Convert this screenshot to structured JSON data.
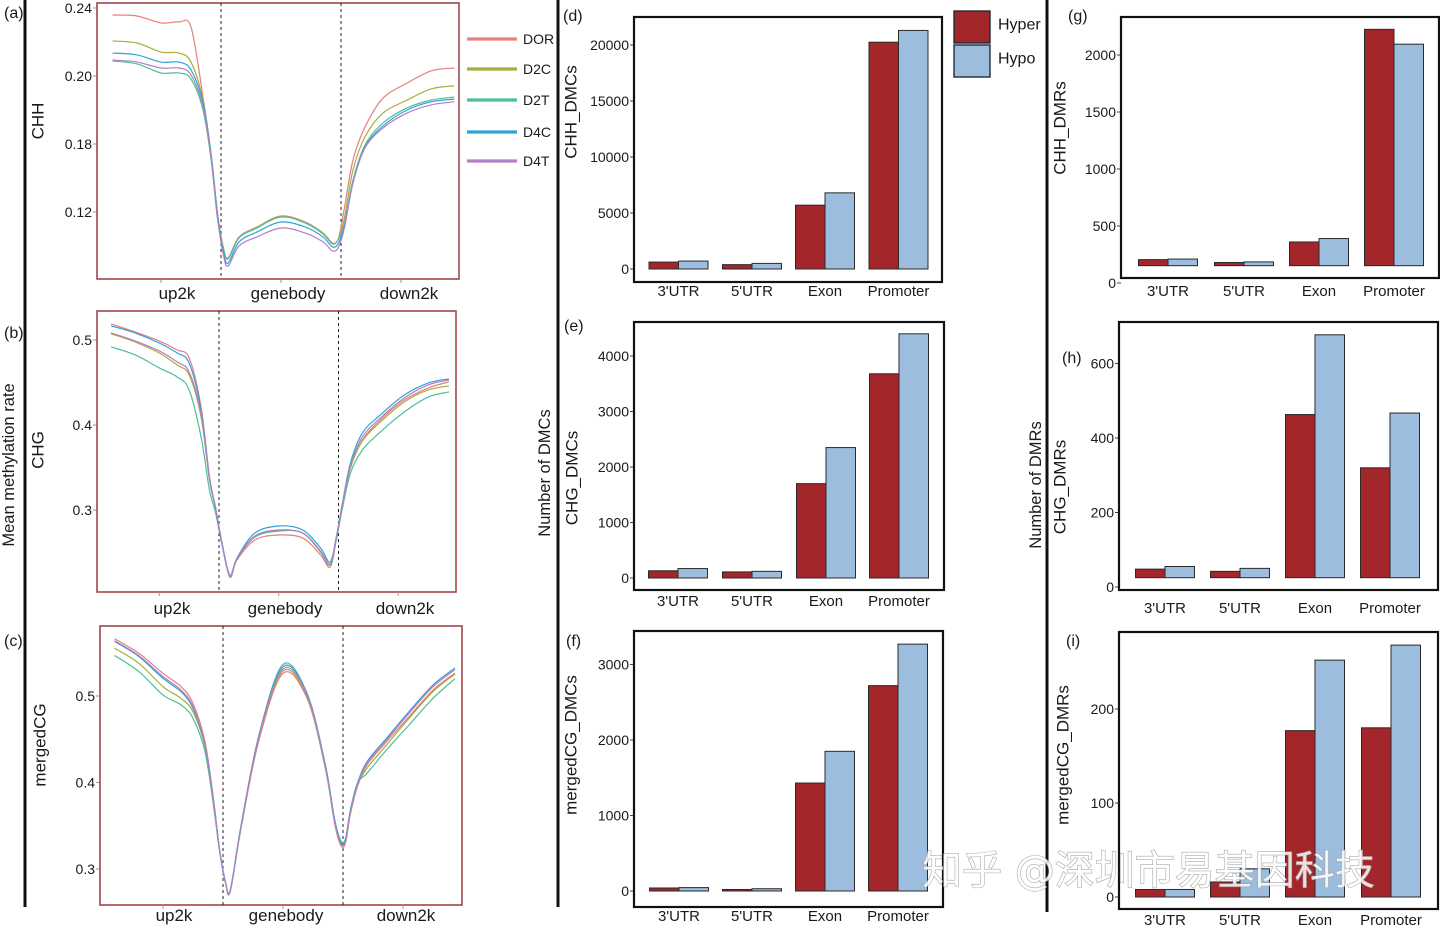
{
  "figure": {
    "y_titles": {
      "left": "Mean methylation rate",
      "middle": "Number of DMCs",
      "right": "Number of DMRs"
    },
    "watermark": "知乎 @深圳市易基因科技"
  },
  "line_legend": [
    {
      "name": "DOR",
      "color": "#e77f7a"
    },
    {
      "name": "D2C",
      "color": "#a8ad3f"
    },
    {
      "name": "D2T",
      "color": "#4dbf97"
    },
    {
      "name": "D4C",
      "color": "#2ea3d8"
    },
    {
      "name": "D4T",
      "color": "#b47fc4"
    }
  ],
  "bar_legend": [
    {
      "name": "Hyper",
      "color": "#a3262a"
    },
    {
      "name": "Hypo",
      "color": "#9dbddf"
    }
  ],
  "colors": {
    "line_frame": "#a0464c",
    "bar_frame": "#111111",
    "separator": "#111111"
  },
  "chart_data": [
    {
      "id": "a",
      "panel_label": "(a)",
      "type": "line",
      "ylabel": "CHH",
      "xtick_labels": [
        "up2k",
        "genebody",
        "down2k"
      ],
      "xtick_values": [
        50,
        150,
        250
      ],
      "region_boundaries": [
        100,
        200
      ],
      "yticks": [
        0.24,
        0.2,
        0.18,
        0.12
      ],
      "ytick_labels": [
        "0.24",
        "0.20",
        "0.18",
        "0.12"
      ],
      "grid": false,
      "legend": "right",
      "x": [
        10,
        30,
        50,
        65,
        75,
        85,
        92,
        97,
        102,
        106,
        115,
        130,
        150,
        170,
        185,
        193,
        198,
        203,
        210,
        220,
        235,
        255,
        275,
        294
      ],
      "series": [
        {
          "name": "DOR",
          "values": [
            0.2359,
            0.2353,
            0.2312,
            0.2318,
            0.2288,
            0.1938,
            0.1685,
            0.1191,
            0.0883,
            0.0795,
            0.098,
            0.1068,
            0.1165,
            0.1112,
            0.1015,
            0.0927,
            0.0971,
            0.1244,
            0.1659,
            0.185,
            0.1935,
            0.1979,
            0.203,
            0.2047
          ]
        },
        {
          "name": "D2C",
          "values": [
            0.2206,
            0.2194,
            0.2141,
            0.2135,
            0.2082,
            0.1929,
            0.1685,
            0.1191,
            0.0879,
            0.0791,
            0.0975,
            0.1064,
            0.1161,
            0.1108,
            0.1011,
            0.0922,
            0.0967,
            0.1156,
            0.1571,
            0.1821,
            0.1891,
            0.1929,
            0.1962,
            0.1971
          ]
        },
        {
          "name": "D2T",
          "values": [
            0.2088,
            0.2071,
            0.2018,
            0.2018,
            0.1991,
            0.19,
            0.1641,
            0.1147,
            0.0874,
            0.0786,
            0.0971,
            0.1059,
            0.1156,
            0.1103,
            0.1006,
            0.0918,
            0.0962,
            0.1103,
            0.1482,
            0.1791,
            0.1862,
            0.1906,
            0.1929,
            0.1938
          ]
        },
        {
          "name": "D4C",
          "values": [
            0.2135,
            0.2124,
            0.2082,
            0.2082,
            0.2035,
            0.1921,
            0.1685,
            0.1191,
            0.0847,
            0.075,
            0.0936,
            0.1024,
            0.1112,
            0.1068,
            0.098,
            0.0892,
            0.0927,
            0.1086,
            0.1465,
            0.1774,
            0.1853,
            0.19,
            0.1924,
            0.1932
          ]
        },
        {
          "name": "D4T",
          "values": [
            0.2094,
            0.2082,
            0.2047,
            0.2047,
            0.2006,
            0.1909,
            0.1659,
            0.1156,
            0.0821,
            0.0724,
            0.0901,
            0.098,
            0.1059,
            0.1015,
            0.0936,
            0.0856,
            0.0892,
            0.1068,
            0.1456,
            0.1765,
            0.1847,
            0.1891,
            0.1915,
            0.1924
          ]
        }
      ]
    },
    {
      "id": "b",
      "panel_label": "(b)",
      "type": "line",
      "ylabel": "CHG",
      "xtick_labels": [
        "up2k",
        "genebody",
        "down2k"
      ],
      "xtick_values": [
        50,
        150,
        250
      ],
      "region_boundaries": [
        100,
        200
      ],
      "yticks": [
        0.5,
        0.4,
        0.3
      ],
      "ytick_labels": [
        "0.5",
        "0.4",
        "0.3"
      ],
      "grid": false,
      "x": [
        10,
        30,
        50,
        65,
        75,
        85,
        92,
        97,
        102,
        109,
        115,
        130,
        150,
        170,
        185,
        193,
        198,
        203,
        210,
        220,
        235,
        255,
        275,
        292
      ],
      "series": [
        {
          "name": "DOR",
          "values": [
            0.5188,
            0.5094,
            0.4988,
            0.4882,
            0.4788,
            0.4212,
            0.3388,
            0.3035,
            0.2647,
            0.2212,
            0.2412,
            0.2647,
            0.2706,
            0.2671,
            0.2471,
            0.2329,
            0.2647,
            0.3035,
            0.3506,
            0.3824,
            0.4059,
            0.4294,
            0.4435,
            0.4506
          ]
        },
        {
          "name": "D2C",
          "values": [
            0.5071,
            0.4976,
            0.4847,
            0.4706,
            0.4588,
            0.4094,
            0.3353,
            0.3024,
            0.2647,
            0.2224,
            0.2424,
            0.2682,
            0.2753,
            0.2729,
            0.2506,
            0.2353,
            0.2647,
            0.3035,
            0.3494,
            0.3812,
            0.4035,
            0.4271,
            0.4412,
            0.4459
          ]
        },
        {
          "name": "D2T",
          "values": [
            0.4918,
            0.4824,
            0.4671,
            0.4565,
            0.4412,
            0.3859,
            0.3235,
            0.2976,
            0.2624,
            0.2224,
            0.2424,
            0.2682,
            0.2753,
            0.2729,
            0.2506,
            0.2353,
            0.2635,
            0.3,
            0.3435,
            0.3706,
            0.3918,
            0.4153,
            0.4329,
            0.4388
          ]
        },
        {
          "name": "D4C",
          "values": [
            0.5165,
            0.5082,
            0.4965,
            0.4847,
            0.4729,
            0.4176,
            0.3388,
            0.3035,
            0.2647,
            0.2235,
            0.2435,
            0.2729,
            0.2812,
            0.2765,
            0.2553,
            0.2388,
            0.2671,
            0.3059,
            0.3553,
            0.3906,
            0.4118,
            0.4353,
            0.4494,
            0.4541
          ]
        },
        {
          "name": "D4T",
          "values": [
            0.5082,
            0.4988,
            0.4871,
            0.4741,
            0.4624,
            0.4129,
            0.3376,
            0.3035,
            0.2647,
            0.2224,
            0.2424,
            0.2694,
            0.2765,
            0.2729,
            0.2518,
            0.2365,
            0.2659,
            0.3047,
            0.3518,
            0.3859,
            0.4082,
            0.4318,
            0.4471,
            0.4529
          ]
        }
      ]
    },
    {
      "id": "c",
      "panel_label": "(c)",
      "type": "line",
      "ylabel": "mergedCG",
      "xtick_labels": [
        "up2k",
        "genebody",
        "down2k"
      ],
      "xtick_values": [
        50,
        150,
        250
      ],
      "region_boundaries": [
        100,
        200
      ],
      "yticks": [
        0.5,
        0.4,
        0.3
      ],
      "ytick_labels": [
        "0.5",
        "0.4",
        "0.3"
      ],
      "grid": false,
      "x": [
        10,
        30,
        50,
        65,
        75,
        85,
        92,
        97,
        102,
        106,
        115,
        130,
        150,
        170,
        185,
        193,
        198,
        202,
        206,
        212,
        220,
        235,
        255,
        275,
        293
      ],
      "series": [
        {
          "name": "DOR",
          "values": [
            0.5659,
            0.5493,
            0.5262,
            0.5108,
            0.4915,
            0.4472,
            0.3817,
            0.3239,
            0.2854,
            0.2746,
            0.347,
            0.4491,
            0.5262,
            0.4973,
            0.4183,
            0.3528,
            0.3277,
            0.3297,
            0.3624,
            0.3952,
            0.4202,
            0.4453,
            0.4761,
            0.5069,
            0.5262
          ]
        },
        {
          "name": "D2C",
          "values": [
            0.5551,
            0.5378,
            0.5108,
            0.4973,
            0.4819,
            0.4414,
            0.3798,
            0.3231,
            0.2846,
            0.2746,
            0.3478,
            0.4518,
            0.5289,
            0.4992,
            0.4183,
            0.3547,
            0.3297,
            0.3316,
            0.3632,
            0.3963,
            0.4164,
            0.4414,
            0.4742,
            0.505,
            0.525
          ]
        },
        {
          "name": "D2T",
          "values": [
            0.5466,
            0.5281,
            0.5012,
            0.4896,
            0.4742,
            0.4356,
            0.374,
            0.322,
            0.2846,
            0.2753,
            0.3501,
            0.4549,
            0.5366,
            0.5031,
            0.4222,
            0.3578,
            0.3335,
            0.3347,
            0.3671,
            0.399,
            0.4106,
            0.4356,
            0.4665,
            0.4973,
            0.5197
          ]
        },
        {
          "name": "D4C",
          "values": [
            0.5628,
            0.5455,
            0.5204,
            0.505,
            0.4857,
            0.4434,
            0.3798,
            0.3239,
            0.2854,
            0.2753,
            0.3489,
            0.4549,
            0.5339,
            0.5031,
            0.4222,
            0.3566,
            0.3316,
            0.3335,
            0.3663,
            0.399,
            0.4241,
            0.4491,
            0.4819,
            0.5127,
            0.532
          ]
        },
        {
          "name": "D4T",
          "values": [
            0.5636,
            0.5466,
            0.5224,
            0.5069,
            0.4877,
            0.4441,
            0.3798,
            0.3231,
            0.2846,
            0.2738,
            0.3478,
            0.453,
            0.5312,
            0.5012,
            0.4202,
            0.3547,
            0.3297,
            0.3316,
            0.3644,
            0.3971,
            0.4222,
            0.4472,
            0.48,
            0.5108,
            0.5301
          ]
        }
      ]
    },
    {
      "id": "d",
      "panel_label": "(d)",
      "type": "bar",
      "ylabel": "CHH_DMCs",
      "categories": [
        "3'UTR",
        "5'UTR",
        "Exon",
        "Promoter"
      ],
      "yticks": [
        0,
        5000,
        10000,
        15000,
        20000
      ],
      "ytick_labels": [
        "0",
        "5000",
        "10000",
        "15000",
        "20000"
      ],
      "bar_base": 0,
      "legend": "top-right",
      "series": [
        {
          "name": "Hyper",
          "values": [
            620,
            390,
            5700,
            20250
          ]
        },
        {
          "name": "Hypo",
          "values": [
            710,
            500,
            6800,
            21300
          ]
        }
      ]
    },
    {
      "id": "e",
      "panel_label": "(e)",
      "type": "bar",
      "ylabel": "CHG_DMCs",
      "categories": [
        "3'UTR",
        "5'UTR",
        "Exon",
        "Promoter"
      ],
      "yticks": [
        0,
        1000,
        2000,
        3000,
        4000
      ],
      "ytick_labels": [
        "0",
        "1000",
        "2000",
        "3000",
        "4000"
      ],
      "bar_base": 0,
      "series": [
        {
          "name": "Hyper",
          "values": [
            130,
            110,
            1700,
            3680
          ]
        },
        {
          "name": "Hypo",
          "values": [
            170,
            120,
            2350,
            4400
          ]
        }
      ]
    },
    {
      "id": "f",
      "panel_label": "(f)",
      "type": "bar",
      "ylabel": "mergedCG_DMCs",
      "categories": [
        "3'UTR",
        "5'UTR",
        "Exon",
        "Promoter"
      ],
      "yticks": [
        0,
        1000,
        2000,
        3000
      ],
      "ytick_labels": [
        "0",
        "1000",
        "2000",
        "3000"
      ],
      "bar_base": 0,
      "series": [
        {
          "name": "Hyper",
          "values": [
            40,
            20,
            1430,
            2720
          ]
        },
        {
          "name": "Hypo",
          "values": [
            45,
            30,
            1850,
            3270
          ]
        }
      ]
    },
    {
      "id": "g",
      "panel_label": "(g)",
      "type": "bar",
      "ylabel": "CHH_DMRs",
      "categories": [
        "3'UTR",
        "5'UTR",
        "Exon",
        "Promoter"
      ],
      "yticks": [
        0,
        500,
        1000,
        1500,
        2000
      ],
      "ytick_labels": [
        "0",
        "500",
        "1000",
        "1500",
        "2000"
      ],
      "bar_base": 152,
      "series": [
        {
          "name": "Hyper",
          "values": [
            205,
            180,
            360,
            2225
          ]
        },
        {
          "name": "Hypo",
          "values": [
            210,
            185,
            390,
            2095
          ]
        }
      ]
    },
    {
      "id": "h",
      "panel_label": "(h)",
      "type": "bar",
      "ylabel": "CHG_DMRs",
      "categories": [
        "3'UTR",
        "5'UTR",
        "Exon",
        "Promoter"
      ],
      "yticks": [
        0,
        200,
        400,
        600
      ],
      "ytick_labels": [
        "0",
        "200",
        "400",
        "600"
      ],
      "bar_base": 25,
      "series": [
        {
          "name": "Hyper",
          "values": [
            48,
            42,
            463,
            320
          ]
        },
        {
          "name": "Hypo",
          "values": [
            55,
            50,
            677,
            467
          ]
        }
      ]
    },
    {
      "id": "i",
      "panel_label": "(i)",
      "type": "bar",
      "ylabel": "mergedCG_DMRs",
      "categories": [
        "3'UTR",
        "5'UTR",
        "Exon",
        "Promoter"
      ],
      "yticks": [
        0,
        100,
        200
      ],
      "ytick_labels": [
        "0",
        "100",
        "200"
      ],
      "bar_base": 0,
      "series": [
        {
          "name": "Hyper",
          "values": [
            8,
            16,
            177,
            180
          ]
        },
        {
          "name": "Hypo",
          "values": [
            8,
            30,
            252,
            268
          ]
        }
      ]
    }
  ]
}
